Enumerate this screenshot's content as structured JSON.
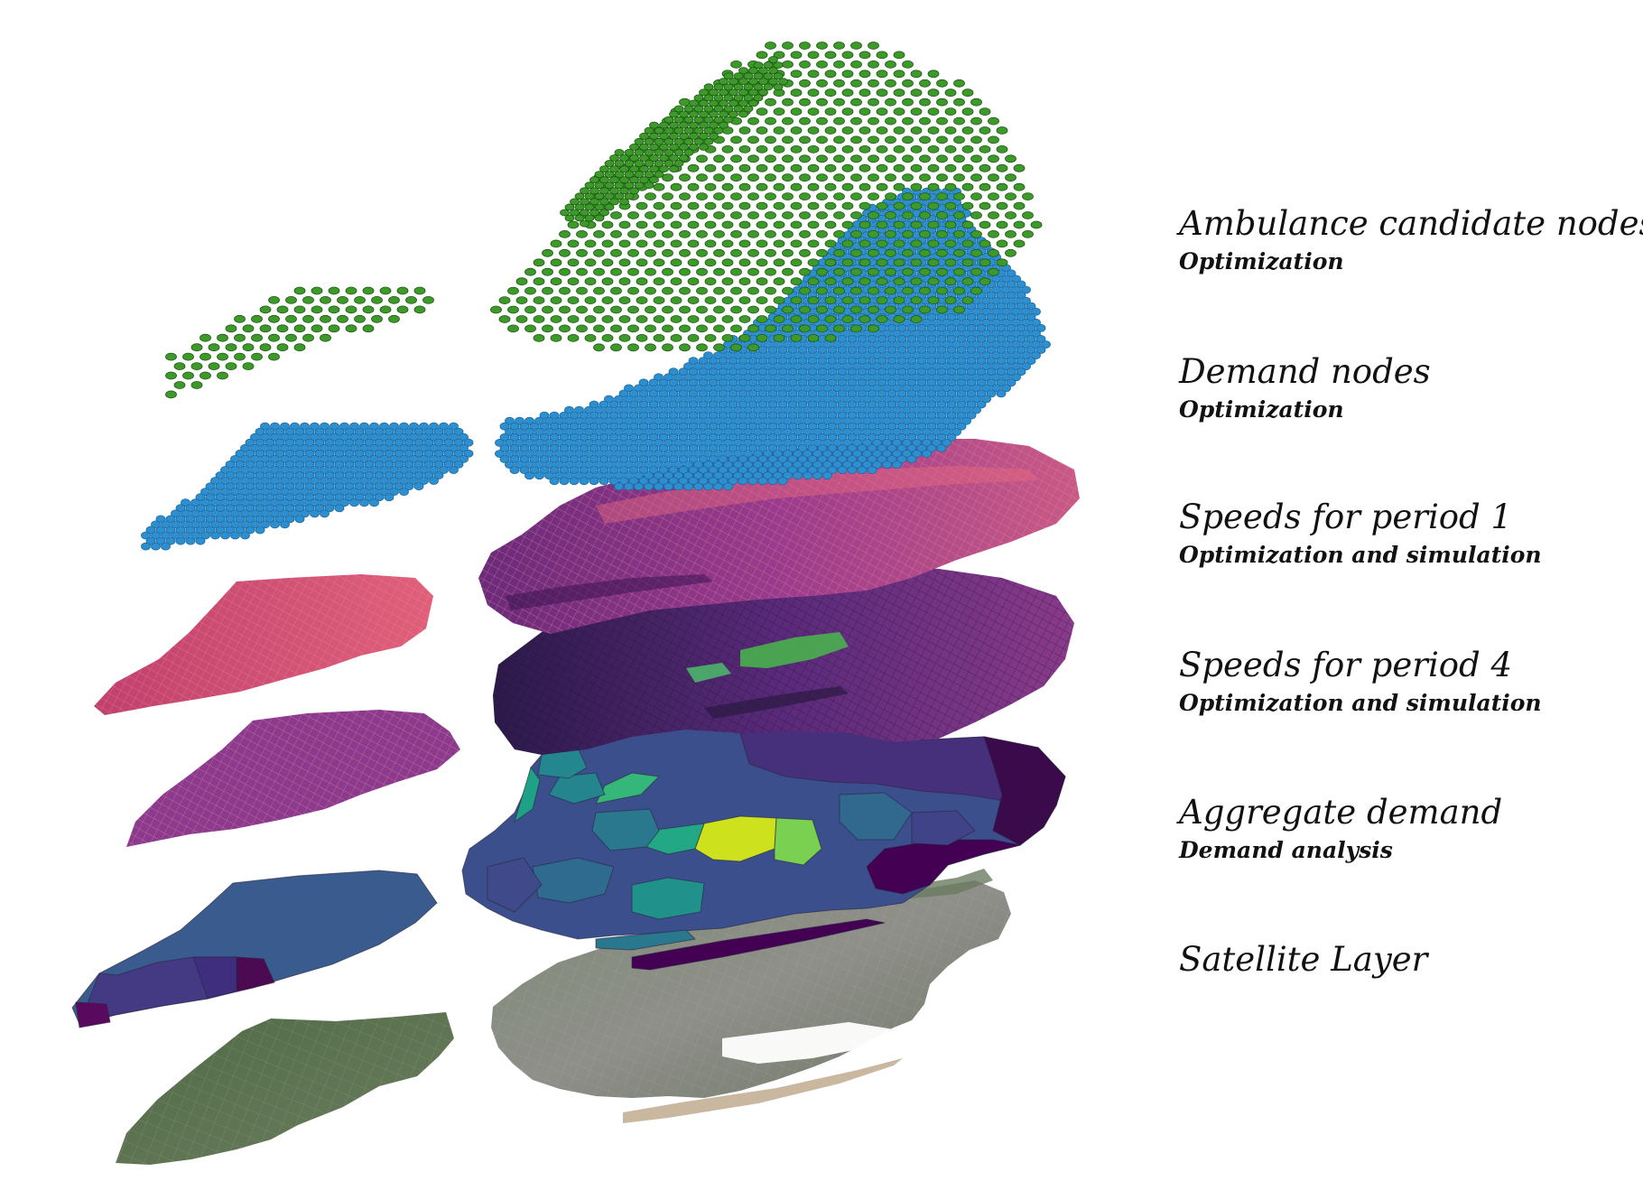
{
  "layers": [
    {
      "key": "ambulance",
      "title": "Ambulance candidate nodes",
      "subtitle": "Optimization",
      "color": "#3d9a2a"
    },
    {
      "key": "demand_nodes",
      "title": "Demand nodes",
      "subtitle": "Optimization",
      "color": "#2d8fcf"
    },
    {
      "key": "speeds_p1",
      "title": "Speeds for period 1",
      "subtitle": "Optimization and simulation",
      "color": "#8a3a8c"
    },
    {
      "key": "speeds_p4",
      "title": "Speeds for period 4",
      "subtitle": "Optimization and simulation",
      "color": "#4b2773"
    },
    {
      "key": "aggregate",
      "title": "Aggregate demand",
      "subtitle": "Demand analysis",
      "color": "#3b528b"
    },
    {
      "key": "satellite",
      "title": "Satellite Layer",
      "subtitle": "",
      "color": "#6f7b69"
    }
  ]
}
